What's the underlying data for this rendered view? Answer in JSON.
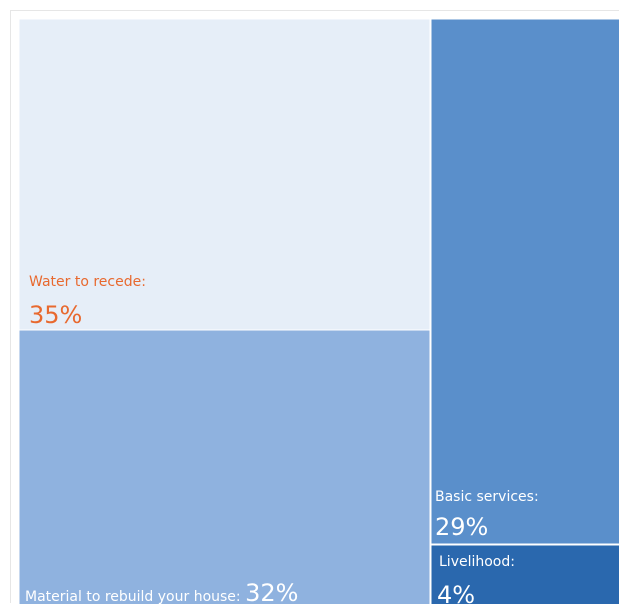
{
  "chart_data": {
    "type": "treemap",
    "title": "",
    "items": [
      {
        "label": "Water to recede:",
        "value": 35,
        "value_text": "35%",
        "color": "#e6eef8",
        "text_color": "#e8692f"
      },
      {
        "label": "Material to rebuild your house:",
        "value": 32,
        "value_text": "32%",
        "color": "#8fb2df",
        "text_color": "#ffffff"
      },
      {
        "label": "Basic services:",
        "value": 29,
        "value_text": "29%",
        "color": "#5a8fcb",
        "text_color": "#ffffff"
      },
      {
        "label": "Livelihood:",
        "value": 4,
        "value_text": "4%",
        "color": "#2a68ae",
        "text_color": "#ffffff"
      }
    ]
  }
}
